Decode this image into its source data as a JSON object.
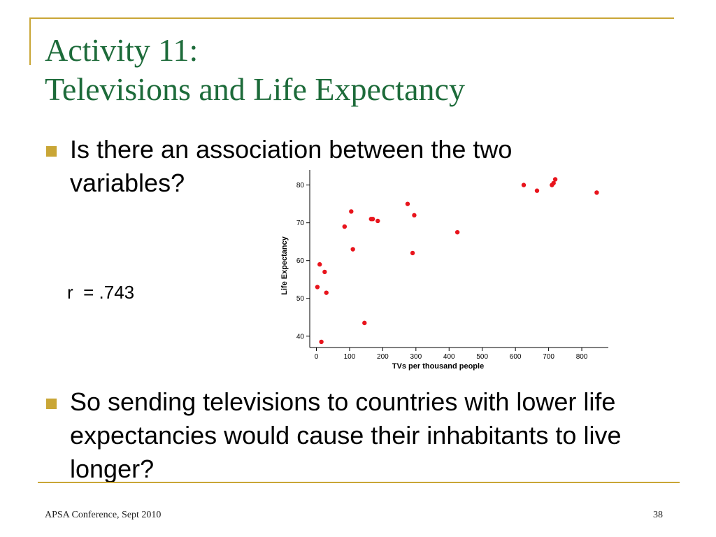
{
  "slide": {
    "title_line1": "Activity 11:",
    "title_line2": "Televisions and Life Expectancy",
    "bullets": [
      "Is there an association between the two variables?",
      "So sending televisions to countries with lower life expectancies would cause their inhabitants to live longer?"
    ],
    "correlation_label": "r  = .743",
    "footer_left": "APSA Conference, Sept 2010",
    "page_number": "38"
  },
  "colors": {
    "accent": "#c9a636",
    "title": "#1d6b3a",
    "points": "#e8141c"
  },
  "chart_data": {
    "type": "scatter",
    "title": "",
    "xlabel": "TVs per thousand people",
    "ylabel": "Life Expectancy",
    "xlim": [
      -20,
      880
    ],
    "ylim": [
      37,
      84
    ],
    "xticks": [
      0,
      100,
      200,
      300,
      400,
      500,
      600,
      700,
      800
    ],
    "yticks": [
      40,
      50,
      60,
      70,
      80
    ],
    "grid": false,
    "series": [
      {
        "points": [
          {
            "x": 3,
            "y": 53
          },
          {
            "x": 10,
            "y": 59
          },
          {
            "x": 15,
            "y": 38.5
          },
          {
            "x": 25,
            "y": 57
          },
          {
            "x": 30,
            "y": 51.5
          },
          {
            "x": 85,
            "y": 69
          },
          {
            "x": 105,
            "y": 73
          },
          {
            "x": 110,
            "y": 63
          },
          {
            "x": 145,
            "y": 43.5
          },
          {
            "x": 165,
            "y": 71
          },
          {
            "x": 170,
            "y": 71
          },
          {
            "x": 185,
            "y": 70.5
          },
          {
            "x": 275,
            "y": 75
          },
          {
            "x": 290,
            "y": 62
          },
          {
            "x": 295,
            "y": 72
          },
          {
            "x": 425,
            "y": 67.5
          },
          {
            "x": 625,
            "y": 80
          },
          {
            "x": 665,
            "y": 78.5
          },
          {
            "x": 710,
            "y": 80
          },
          {
            "x": 715,
            "y": 80.5
          },
          {
            "x": 720,
            "y": 81.5
          },
          {
            "x": 845,
            "y": 78
          }
        ]
      }
    ]
  }
}
